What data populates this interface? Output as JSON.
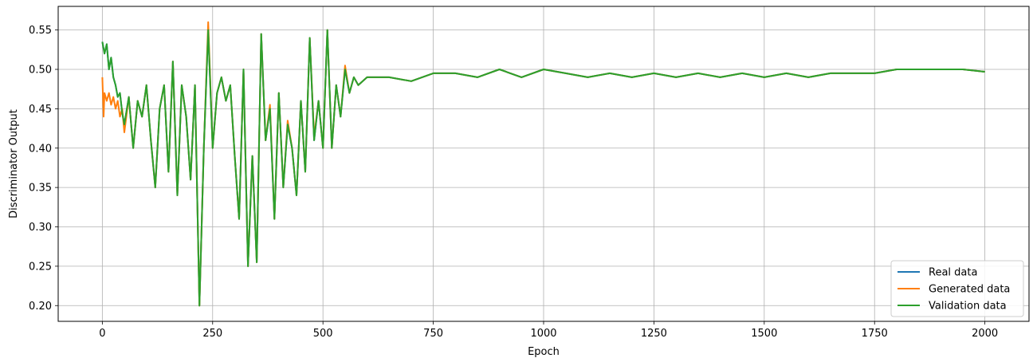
{
  "chart_data": {
    "type": "line",
    "title": "",
    "xlabel": "Epoch",
    "ylabel": "Discriminator Output",
    "xlim": [
      -100,
      2100
    ],
    "ylim": [
      0.18,
      0.58
    ],
    "x_ticks": [
      0,
      250,
      500,
      750,
      1000,
      1250,
      1500,
      1750,
      2000
    ],
    "y_ticks": [
      0.2,
      0.25,
      0.3,
      0.35,
      0.4,
      0.45,
      0.5,
      0.55
    ],
    "x_tick_labels": [
      "0",
      "250",
      "500",
      "750",
      "1000",
      "1250",
      "1500",
      "1750",
      "2000"
    ],
    "y_tick_labels": [
      "0.20",
      "0.25",
      "0.30",
      "0.35",
      "0.40",
      "0.45",
      "0.50",
      "0.55"
    ],
    "grid": true,
    "legend_position": "bottom-right",
    "series": [
      {
        "name": "Real data",
        "color": "#1f77b4",
        "x": [
          0,
          5,
          10,
          15,
          20,
          25,
          30,
          35,
          40,
          45,
          50,
          60,
          70,
          80,
          90,
          100,
          110,
          120,
          130,
          140,
          150,
          160,
          170,
          180,
          190,
          200,
          210,
          220,
          230,
          240,
          250,
          260,
          270,
          280,
          290,
          300,
          310,
          320,
          330,
          340,
          350,
          360,
          370,
          380,
          390,
          400,
          410,
          420,
          430,
          440,
          450,
          460,
          470,
          480,
          490,
          500,
          510,
          520,
          530,
          540,
          550,
          560,
          570,
          580,
          600,
          650,
          700,
          750,
          800,
          850,
          900,
          950,
          1000,
          1050,
          1100,
          1150,
          1200,
          1250,
          1300,
          1350,
          1400,
          1450,
          1500,
          1550,
          1600,
          1650,
          1700,
          1750,
          1800,
          1850,
          1900,
          1950,
          2000
        ],
        "values": [
          0.535,
          0.52,
          0.532,
          0.5,
          0.515,
          0.49,
          0.48,
          0.465,
          0.47,
          0.445,
          0.43,
          0.465,
          0.4,
          0.46,
          0.44,
          0.48,
          0.41,
          0.35,
          0.45,
          0.48,
          0.37,
          0.51,
          0.34,
          0.48,
          0.44,
          0.36,
          0.48,
          0.2,
          0.4,
          0.55,
          0.4,
          0.47,
          0.49,
          0.46,
          0.48,
          0.39,
          0.31,
          0.5,
          0.25,
          0.39,
          0.255,
          0.545,
          0.41,
          0.45,
          0.31,
          0.47,
          0.35,
          0.43,
          0.4,
          0.34,
          0.46,
          0.37,
          0.54,
          0.41,
          0.46,
          0.4,
          0.55,
          0.4,
          0.48,
          0.44,
          0.5,
          0.47,
          0.49,
          0.48,
          0.49,
          0.49,
          0.485,
          0.495,
          0.495,
          0.49,
          0.5,
          0.49,
          0.5,
          0.495,
          0.49,
          0.495,
          0.49,
          0.495,
          0.49,
          0.495,
          0.49,
          0.495,
          0.49,
          0.495,
          0.49,
          0.495,
          0.495,
          0.495,
          0.5,
          0.5,
          0.5,
          0.5,
          0.497
        ]
      },
      {
        "name": "Generated data",
        "color": "#ff7f0e",
        "x": [
          0,
          3,
          5,
          10,
          15,
          20,
          25,
          30,
          35,
          40,
          45,
          50,
          60,
          70,
          80,
          90,
          100,
          110,
          120,
          130,
          140,
          150,
          160,
          170,
          180,
          190,
          200,
          210,
          220,
          230,
          240,
          250,
          260,
          270,
          280,
          290,
          300,
          310,
          320,
          330,
          340,
          350,
          360,
          370,
          380,
          390,
          400,
          410,
          420,
          430,
          440,
          450,
          460,
          470,
          480,
          490,
          500,
          510,
          520,
          530,
          540,
          550,
          560,
          570,
          580,
          600,
          650,
          700,
          750,
          800,
          850,
          900,
          950,
          1000,
          1050,
          1100,
          1150,
          1200,
          1250,
          1300,
          1350,
          1400,
          1450,
          1500,
          1550,
          1600,
          1650,
          1700,
          1750,
          1800,
          1850,
          1900,
          1950,
          2000
        ],
        "values": [
          0.49,
          0.44,
          0.47,
          0.46,
          0.47,
          0.455,
          0.465,
          0.45,
          0.46,
          0.44,
          0.45,
          0.42,
          0.465,
          0.4,
          0.46,
          0.44,
          0.48,
          0.41,
          0.35,
          0.45,
          0.48,
          0.37,
          0.51,
          0.34,
          0.48,
          0.44,
          0.36,
          0.48,
          0.2,
          0.4,
          0.56,
          0.4,
          0.47,
          0.49,
          0.46,
          0.48,
          0.39,
          0.31,
          0.5,
          0.25,
          0.39,
          0.255,
          0.545,
          0.41,
          0.455,
          0.31,
          0.47,
          0.35,
          0.435,
          0.4,
          0.34,
          0.46,
          0.37,
          0.54,
          0.415,
          0.46,
          0.4,
          0.55,
          0.4,
          0.48,
          0.44,
          0.505,
          0.47,
          0.49,
          0.48,
          0.49,
          0.49,
          0.485,
          0.495,
          0.495,
          0.49,
          0.5,
          0.49,
          0.5,
          0.495,
          0.49,
          0.495,
          0.49,
          0.495,
          0.49,
          0.495,
          0.49,
          0.495,
          0.49,
          0.495,
          0.49,
          0.495,
          0.495,
          0.495,
          0.5,
          0.5,
          0.5,
          0.5,
          0.497
        ]
      },
      {
        "name": "Validation data",
        "color": "#2ca02c",
        "x": [
          0,
          5,
          10,
          15,
          20,
          25,
          30,
          35,
          40,
          45,
          50,
          60,
          70,
          80,
          90,
          100,
          110,
          120,
          130,
          140,
          150,
          160,
          170,
          180,
          190,
          200,
          210,
          220,
          230,
          240,
          250,
          260,
          270,
          280,
          290,
          300,
          310,
          320,
          330,
          340,
          350,
          360,
          370,
          380,
          390,
          400,
          410,
          420,
          430,
          440,
          450,
          460,
          470,
          480,
          490,
          500,
          510,
          520,
          530,
          540,
          550,
          560,
          570,
          580,
          600,
          650,
          700,
          750,
          800,
          850,
          900,
          950,
          1000,
          1050,
          1100,
          1150,
          1200,
          1250,
          1300,
          1350,
          1400,
          1450,
          1500,
          1550,
          1600,
          1650,
          1700,
          1750,
          1800,
          1850,
          1900,
          1950,
          2000
        ],
        "values": [
          0.535,
          0.52,
          0.532,
          0.5,
          0.515,
          0.49,
          0.48,
          0.465,
          0.47,
          0.445,
          0.43,
          0.465,
          0.4,
          0.46,
          0.44,
          0.48,
          0.41,
          0.35,
          0.45,
          0.48,
          0.37,
          0.51,
          0.34,
          0.48,
          0.44,
          0.36,
          0.48,
          0.2,
          0.4,
          0.55,
          0.4,
          0.47,
          0.49,
          0.46,
          0.48,
          0.39,
          0.31,
          0.5,
          0.25,
          0.39,
          0.255,
          0.545,
          0.41,
          0.45,
          0.31,
          0.47,
          0.35,
          0.43,
          0.4,
          0.34,
          0.46,
          0.37,
          0.54,
          0.41,
          0.46,
          0.4,
          0.55,
          0.4,
          0.48,
          0.44,
          0.5,
          0.47,
          0.49,
          0.48,
          0.49,
          0.49,
          0.485,
          0.495,
          0.495,
          0.49,
          0.5,
          0.49,
          0.5,
          0.495,
          0.49,
          0.495,
          0.49,
          0.495,
          0.49,
          0.495,
          0.49,
          0.495,
          0.49,
          0.495,
          0.49,
          0.495,
          0.495,
          0.495,
          0.5,
          0.5,
          0.5,
          0.5,
          0.497
        ]
      }
    ]
  }
}
